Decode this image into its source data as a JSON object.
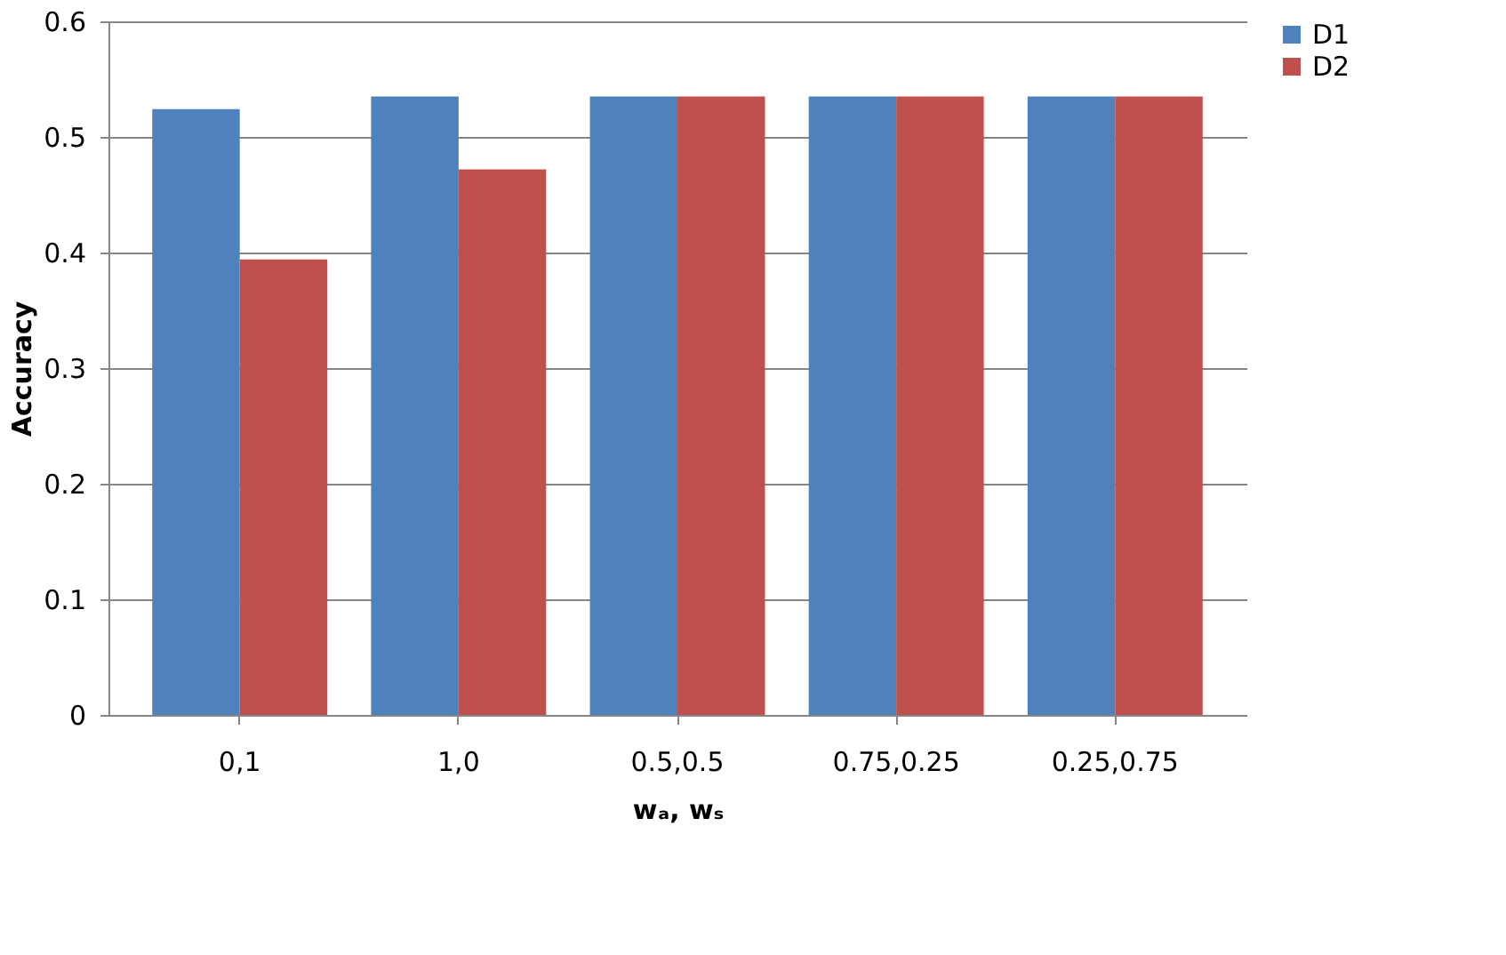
{
  "chart_data": {
    "type": "bar",
    "categories": [
      "0,1",
      "1,0",
      "0.5,0.5",
      "0.75,0.25",
      "0.25,0.75"
    ],
    "series": [
      {
        "name": "D1",
        "color": "#4f81bd",
        "values": [
          0.524,
          0.535,
          0.535,
          0.535,
          0.535
        ]
      },
      {
        "name": "D2",
        "color": "#c0504d",
        "values": [
          0.394,
          0.472,
          0.535,
          0.535,
          0.535
        ]
      }
    ],
    "xlabel": "wₐ, wₛ",
    "ylabel": "Accuracy",
    "ylim": [
      0,
      0.6
    ],
    "yticks": [
      0,
      0.1,
      0.2,
      0.3,
      0.4,
      0.5,
      0.6
    ],
    "grid": "y",
    "legend": "right"
  }
}
